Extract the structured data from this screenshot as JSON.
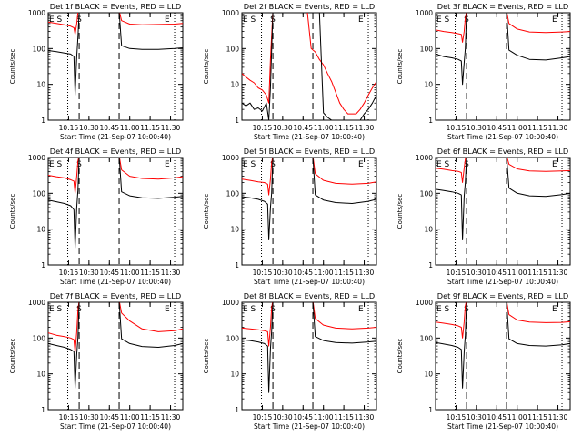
{
  "figure": {
    "time_ticks": [
      "10:15",
      "10:30",
      "10:45",
      "11:00",
      "11:15",
      "11:30"
    ],
    "xlabel": "Start Time (21-Sep-07 10:00:40)",
    "ylabel": "Counts/sec",
    "y_ticks": [
      "1",
      "10",
      "100",
      "1000"
    ],
    "marker_S": "S",
    "marker_E": "E",
    "colors": {
      "events": "#000000",
      "lld": "#ff0000"
    }
  },
  "chart_data": [
    {
      "type": "line",
      "title": "Det 1f BLACK = Events, RED = LLD",
      "xlabel": "Start Time (21-Sep-07 10:00:40)",
      "ylabel": "Counts/sec",
      "x_unit": "minutes after 10:00",
      "xlim": [
        5,
        38
      ],
      "ylim": [
        1,
        1000
      ],
      "yscale": "log",
      "vlines_dotted": [
        9.8,
        36.0
      ],
      "vlines_dashed": [
        12.6,
        22.4
      ],
      "series": [
        {
          "name": "Events",
          "color": "#000000",
          "x": [
            5,
            7,
            9,
            10.5,
            11.3,
            11.6,
            12.0,
            12.3,
            12.6,
            13,
            22.4,
            23,
            25,
            28,
            32,
            36,
            38
          ],
          "y": [
            88,
            82,
            75,
            70,
            60,
            5,
            60,
            200,
            1200,
            1200,
            1200,
            120,
            100,
            95,
            95,
            100,
            105
          ]
        },
        {
          "name": "LLD",
          "color": "#ff0000",
          "x": [
            5,
            7,
            9,
            10.5,
            11.3,
            11.6,
            12.0,
            12.3,
            12.6,
            13,
            22.4,
            23,
            25,
            28,
            32,
            36,
            38
          ],
          "y": [
            550,
            500,
            460,
            420,
            380,
            250,
            500,
            1000,
            1200,
            1200,
            1200,
            600,
            480,
            460,
            470,
            480,
            500
          ]
        }
      ]
    },
    {
      "type": "line",
      "title": "Det 2f BLACK = Events, RED = LLD",
      "xlabel": "Start Time (21-Sep-07 10:00:40)",
      "ylabel": "Counts/sec",
      "x_unit": "minutes after 10:00",
      "xlim": [
        5,
        38
      ],
      "ylim": [
        1,
        1000
      ],
      "yscale": "log",
      "vlines_dotted": [
        9.8,
        36.0
      ],
      "vlines_dashed": [
        12.6,
        22.4
      ],
      "series": [
        {
          "name": "Events",
          "color": "#000000",
          "x": [
            5,
            6,
            7,
            8,
            9,
            10,
            11,
            11.6,
            12.0,
            12.6,
            13,
            14,
            15,
            16,
            17,
            18,
            19,
            20,
            21,
            22,
            23,
            24,
            25,
            26,
            27,
            28,
            29,
            30,
            31,
            32,
            33,
            34,
            35,
            36,
            37,
            38
          ],
          "y": [
            3,
            2.5,
            3,
            2,
            2.2,
            1.8,
            3,
            1,
            8,
            1200,
            1200,
            1200,
            1200,
            1200,
            1200,
            1200,
            1200,
            1200,
            1200,
            1200,
            1200,
            1200,
            1.6,
            1.2,
            1,
            1,
            1,
            1,
            1,
            1,
            1,
            1,
            1.5,
            2,
            3,
            5
          ]
        },
        {
          "name": "LLD",
          "color": "#ff0000",
          "x": [
            5,
            6,
            7,
            8,
            9,
            10,
            11,
            11.6,
            12.0,
            12.6,
            13,
            14,
            15,
            16,
            17,
            18,
            19,
            20,
            21,
            22,
            23,
            24,
            25,
            26,
            27,
            28,
            29,
            30,
            31,
            32,
            33,
            34,
            35,
            36,
            37,
            38
          ],
          "y": [
            20,
            16,
            13,
            11,
            8,
            7,
            5,
            3,
            50,
            1200,
            1200,
            1200,
            1200,
            1200,
            1200,
            1200,
            1200,
            1200,
            1200,
            100,
            80,
            50,
            35,
            20,
            12,
            6,
            3,
            2,
            1.5,
            1.5,
            1.5,
            2,
            3,
            5,
            8,
            12
          ]
        }
      ]
    },
    {
      "type": "line",
      "title": "Det 3f BLACK = Events, RED = LLD",
      "xlabel": "Start Time (21-Sep-07 10:00:40)",
      "ylabel": "Counts/sec",
      "x_unit": "minutes after 10:00",
      "xlim": [
        5,
        38
      ],
      "ylim": [
        1,
        1000
      ],
      "yscale": "log",
      "vlines_dotted": [
        9.8,
        36.0
      ],
      "vlines_dashed": [
        12.6,
        22.4
      ],
      "series": [
        {
          "name": "Events",
          "color": "#000000",
          "x": [
            5,
            7,
            9,
            10.5,
            11.3,
            11.6,
            12.0,
            12.3,
            12.6,
            13,
            22.4,
            23,
            25,
            28,
            32,
            36,
            38
          ],
          "y": [
            70,
            60,
            55,
            50,
            45,
            10,
            40,
            100,
            1200,
            1200,
            1200,
            90,
            65,
            50,
            48,
            55,
            60
          ]
        },
        {
          "name": "LLD",
          "color": "#ff0000",
          "x": [
            5,
            7,
            9,
            10.5,
            11.3,
            11.6,
            12.0,
            12.3,
            12.6,
            13,
            22.4,
            23,
            25,
            28,
            32,
            36,
            38
          ],
          "y": [
            330,
            300,
            280,
            260,
            250,
            150,
            300,
            700,
            1200,
            1200,
            1200,
            500,
            350,
            290,
            280,
            290,
            300
          ]
        }
      ]
    },
    {
      "type": "line",
      "title": "Det 4f BLACK = Events, RED = LLD",
      "xlabel": "Start Time (21-Sep-07 10:00:40)",
      "ylabel": "Counts/sec",
      "x_unit": "minutes after 10:00",
      "xlim": [
        5,
        38
      ],
      "ylim": [
        1,
        1000
      ],
      "yscale": "log",
      "vlines_dotted": [
        9.8,
        36.0
      ],
      "vlines_dashed": [
        12.6,
        22.4
      ],
      "series": [
        {
          "name": "Events",
          "color": "#000000",
          "x": [
            5,
            7,
            9,
            10.5,
            11.3,
            11.6,
            12.0,
            12.3,
            12.6,
            13,
            22.4,
            23,
            25,
            28,
            32,
            36,
            38
          ],
          "y": [
            65,
            58,
            52,
            45,
            35,
            3,
            40,
            120,
            1200,
            1200,
            1200,
            110,
            85,
            75,
            72,
            78,
            82
          ]
        },
        {
          "name": "LLD",
          "color": "#ff0000",
          "x": [
            5,
            7,
            9,
            10.5,
            11.3,
            11.6,
            12.0,
            12.3,
            12.6,
            13,
            22.4,
            23,
            25,
            28,
            32,
            36,
            38
          ],
          "y": [
            320,
            290,
            270,
            240,
            220,
            100,
            300,
            800,
            1200,
            1200,
            1200,
            450,
            300,
            260,
            250,
            270,
            290
          ]
        }
      ]
    },
    {
      "type": "line",
      "title": "Det 5f BLACK = Events, RED = LLD",
      "xlabel": "Start Time (21-Sep-07 10:00:40)",
      "ylabel": "Counts/sec",
      "x_unit": "minutes after 10:00",
      "xlim": [
        5,
        38
      ],
      "ylim": [
        1,
        1000
      ],
      "yscale": "log",
      "vlines_dotted": [
        9.8,
        36.0
      ],
      "vlines_dashed": [
        12.6,
        22.4
      ],
      "series": [
        {
          "name": "Events",
          "color": "#000000",
          "x": [
            5,
            7,
            9,
            10.5,
            11.3,
            11.6,
            12.0,
            12.3,
            12.6,
            13,
            22.4,
            23,
            25,
            28,
            32,
            36,
            38
          ],
          "y": [
            80,
            75,
            68,
            60,
            50,
            5,
            40,
            100,
            1200,
            1200,
            1200,
            90,
            65,
            55,
            52,
            60,
            68
          ]
        },
        {
          "name": "LLD",
          "color": "#ff0000",
          "x": [
            5,
            7,
            9,
            10.5,
            11.3,
            11.6,
            12.0,
            12.3,
            12.6,
            13,
            22.4,
            23,
            25,
            28,
            32,
            36,
            38
          ],
          "y": [
            250,
            230,
            210,
            200,
            180,
            90,
            250,
            700,
            1200,
            1200,
            1200,
            350,
            230,
            190,
            180,
            190,
            210
          ]
        }
      ]
    },
    {
      "type": "line",
      "title": "Det 6f BLACK = Events, RED = LLD",
      "xlabel": "Start Time (21-Sep-07 10:00:40)",
      "ylabel": "Counts/sec",
      "x_unit": "minutes after 10:00",
      "xlim": [
        5,
        38
      ],
      "ylim": [
        1,
        1000
      ],
      "yscale": "log",
      "vlines_dotted": [
        9.8,
        36.0
      ],
      "vlines_dashed": [
        12.6,
        22.4
      ],
      "series": [
        {
          "name": "Events",
          "color": "#000000",
          "x": [
            5,
            7,
            9,
            10.5,
            11.3,
            11.6,
            12.0,
            12.3,
            12.6,
            13,
            22.4,
            23,
            25,
            28,
            32,
            36,
            38
          ],
          "y": [
            130,
            120,
            110,
            100,
            90,
            5,
            80,
            200,
            1200,
            1200,
            1200,
            140,
            100,
            85,
            82,
            92,
            100
          ]
        },
        {
          "name": "LLD",
          "color": "#ff0000",
          "x": [
            5,
            7,
            9,
            10.5,
            11.3,
            11.6,
            12.0,
            12.3,
            12.6,
            13,
            22.4,
            23,
            25,
            28,
            32,
            36,
            38
          ],
          "y": [
            500,
            470,
            430,
            410,
            380,
            200,
            500,
            900,
            1200,
            1200,
            1200,
            650,
            480,
            420,
            410,
            420,
            430
          ]
        }
      ]
    },
    {
      "type": "line",
      "title": "Det 7f BLACK = Events, RED = LLD",
      "xlabel": "Start Time (21-Sep-07 10:00:40)",
      "ylabel": "Counts/sec",
      "x_unit": "minutes after 10:00",
      "xlim": [
        5,
        38
      ],
      "ylim": [
        1,
        1000
      ],
      "yscale": "log",
      "vlines_dotted": [
        9.8,
        36.0
      ],
      "vlines_dashed": [
        12.6,
        22.4
      ],
      "series": [
        {
          "name": "Events",
          "color": "#000000",
          "x": [
            5,
            7,
            9,
            10.5,
            11.3,
            11.6,
            12.0,
            12.3,
            12.6,
            13,
            22.4,
            23,
            25,
            28,
            32,
            36,
            38
          ],
          "y": [
            70,
            62,
            55,
            48,
            42,
            4,
            35,
            100,
            1200,
            1200,
            1200,
            95,
            70,
            58,
            55,
            62,
            70
          ]
        },
        {
          "name": "LLD",
          "color": "#ff0000",
          "x": [
            5,
            7,
            9,
            10.5,
            11.3,
            11.6,
            12.0,
            12.3,
            12.6,
            13,
            22.4,
            23,
            25,
            28,
            32,
            36,
            38
          ],
          "y": [
            140,
            120,
            110,
            100,
            90,
            40,
            150,
            600,
            1200,
            1200,
            1200,
            500,
            300,
            180,
            150,
            160,
            180
          ]
        }
      ]
    },
    {
      "type": "line",
      "title": "Det 8f BLACK = Events, RED = LLD",
      "xlabel": "Start Time (21-Sep-07 10:00:40)",
      "ylabel": "Counts/sec",
      "x_unit": "minutes after 10:00",
      "xlim": [
        5,
        38
      ],
      "ylim": [
        1,
        1000
      ],
      "yscale": "log",
      "vlines_dotted": [
        9.8,
        36.0
      ],
      "vlines_dashed": [
        12.6,
        22.4
      ],
      "series": [
        {
          "name": "Events",
          "color": "#000000",
          "x": [
            5,
            7,
            9,
            10.5,
            11.3,
            11.6,
            12.0,
            12.3,
            12.6,
            13,
            22.4,
            23,
            25,
            28,
            32,
            36,
            38
          ],
          "y": [
            90,
            85,
            78,
            70,
            60,
            3,
            50,
            150,
            1200,
            1200,
            1200,
            110,
            85,
            75,
            72,
            78,
            82
          ]
        },
        {
          "name": "LLD",
          "color": "#ff0000",
          "x": [
            5,
            7,
            9,
            10.5,
            11.3,
            11.6,
            12.0,
            12.3,
            12.6,
            13,
            22.4,
            23,
            25,
            28,
            32,
            36,
            38
          ],
          "y": [
            190,
            180,
            170,
            160,
            150,
            60,
            200,
            700,
            1200,
            1200,
            1200,
            350,
            230,
            190,
            180,
            190,
            200
          ]
        }
      ]
    },
    {
      "type": "line",
      "title": "Det 9f BLACK = Events, RED = LLD",
      "xlabel": "Start Time (21-Sep-07 10:00:40)",
      "ylabel": "Counts/sec",
      "x_unit": "minutes after 10:00",
      "xlim": [
        5,
        38
      ],
      "ylim": [
        1,
        1000
      ],
      "yscale": "log",
      "vlines_dotted": [
        9.8,
        36.0
      ],
      "vlines_dashed": [
        12.6,
        22.4
      ],
      "series": [
        {
          "name": "Events",
          "color": "#000000",
          "x": [
            5,
            7,
            9,
            10.5,
            11.3,
            11.6,
            12.0,
            12.3,
            12.6,
            13,
            22.4,
            23,
            25,
            28,
            32,
            36,
            38
          ],
          "y": [
            75,
            68,
            62,
            55,
            48,
            4,
            40,
            120,
            1200,
            1200,
            1200,
            95,
            70,
            62,
            60,
            65,
            70
          ]
        },
        {
          "name": "LLD",
          "color": "#ff0000",
          "x": [
            5,
            7,
            9,
            10.5,
            11.3,
            11.6,
            12.0,
            12.3,
            12.6,
            13,
            22.4,
            23,
            25,
            28,
            32,
            36,
            38
          ],
          "y": [
            280,
            260,
            240,
            220,
            200,
            100,
            280,
            800,
            1200,
            1200,
            1200,
            450,
            320,
            280,
            270,
            275,
            285
          ]
        }
      ]
    }
  ]
}
